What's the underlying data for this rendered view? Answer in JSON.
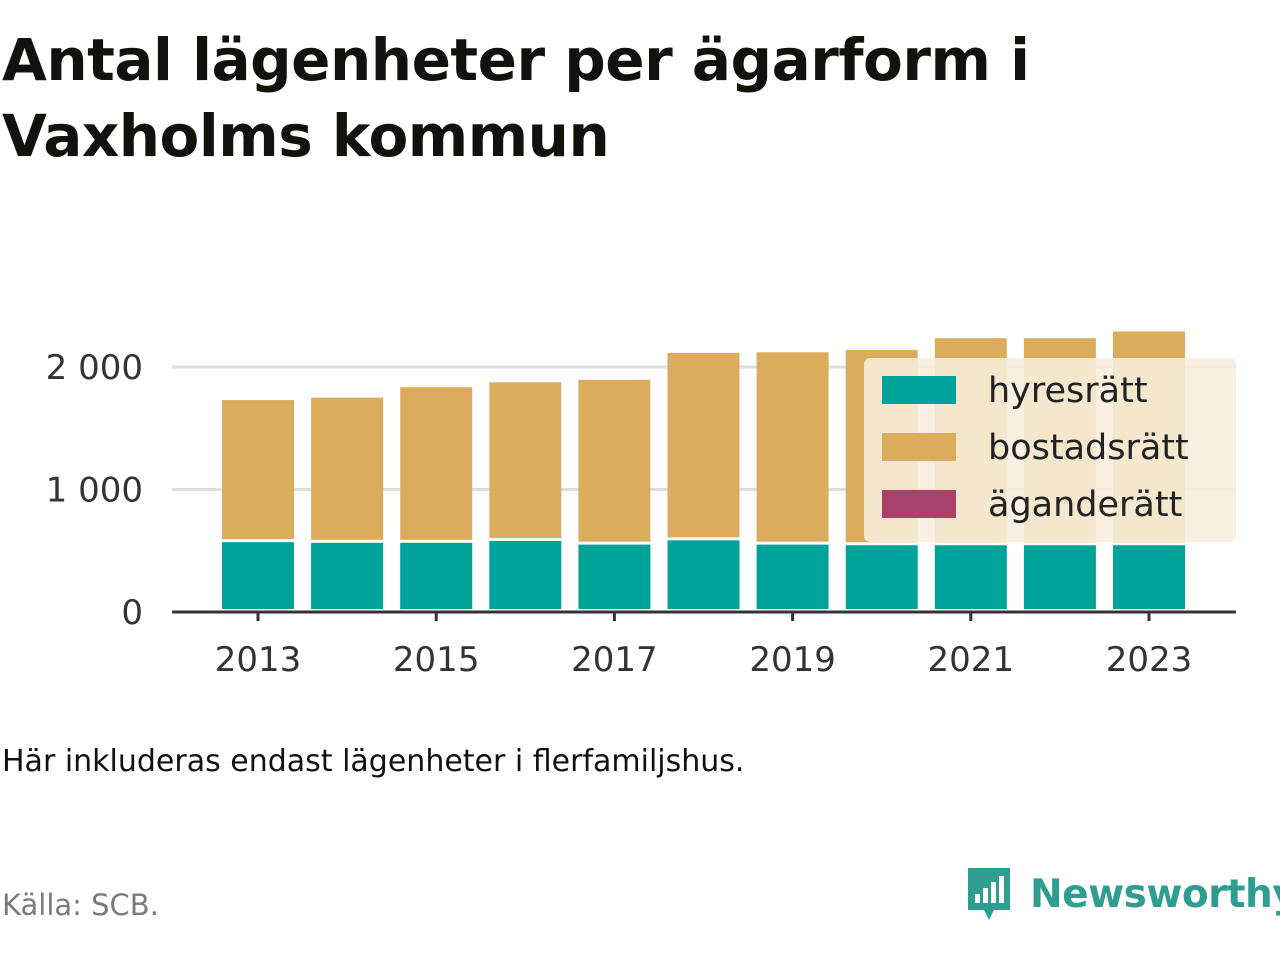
{
  "title": "Antal lägenheter per ägarform i Vaxholms kommun",
  "note": "Här inkluderas endast lägenheter i flerfamiljshus.",
  "source": "Källa: SCB.",
  "brand": {
    "name": "Newsworthy",
    "icon": "newsworthy-logo-icon"
  },
  "colors": {
    "hyresratt": "#00a39a",
    "bostadsratt": "#dbac5b",
    "aganderatt": "#a8426b",
    "grid": "#dddddd",
    "axis": "#333333",
    "legend_bg": "#f8eede"
  },
  "chart_data": {
    "type": "bar",
    "stacked": true,
    "categories": [
      "2013",
      "2014",
      "2015",
      "2016",
      "2017",
      "2018",
      "2019",
      "2020",
      "2021",
      "2022",
      "2023"
    ],
    "x_tick_labels": [
      "2013",
      "2015",
      "2017",
      "2019",
      "2021",
      "2023"
    ],
    "y_tick_labels": [
      "0",
      "1 000",
      "2 000"
    ],
    "y_ticks": [
      0,
      1000,
      2000
    ],
    "ylim": [
      0,
      2300
    ],
    "grid": true,
    "legend_position": "top-right",
    "series": [
      {
        "name": "hyresrätt",
        "key": "hyresratt",
        "values": [
          570,
          565,
          565,
          580,
          550,
          585,
          550,
          545,
          545,
          545,
          545
        ]
      },
      {
        "name": "bostadsrätt",
        "key": "bostadsratt",
        "values": [
          1160,
          1185,
          1270,
          1295,
          1345,
          1530,
          1570,
          1595,
          1690,
          1690,
          1745
        ]
      },
      {
        "name": "äganderätt",
        "key": "aganderatt",
        "values": [
          0,
          0,
          0,
          0,
          0,
          0,
          0,
          0,
          0,
          0,
          0
        ]
      }
    ]
  }
}
